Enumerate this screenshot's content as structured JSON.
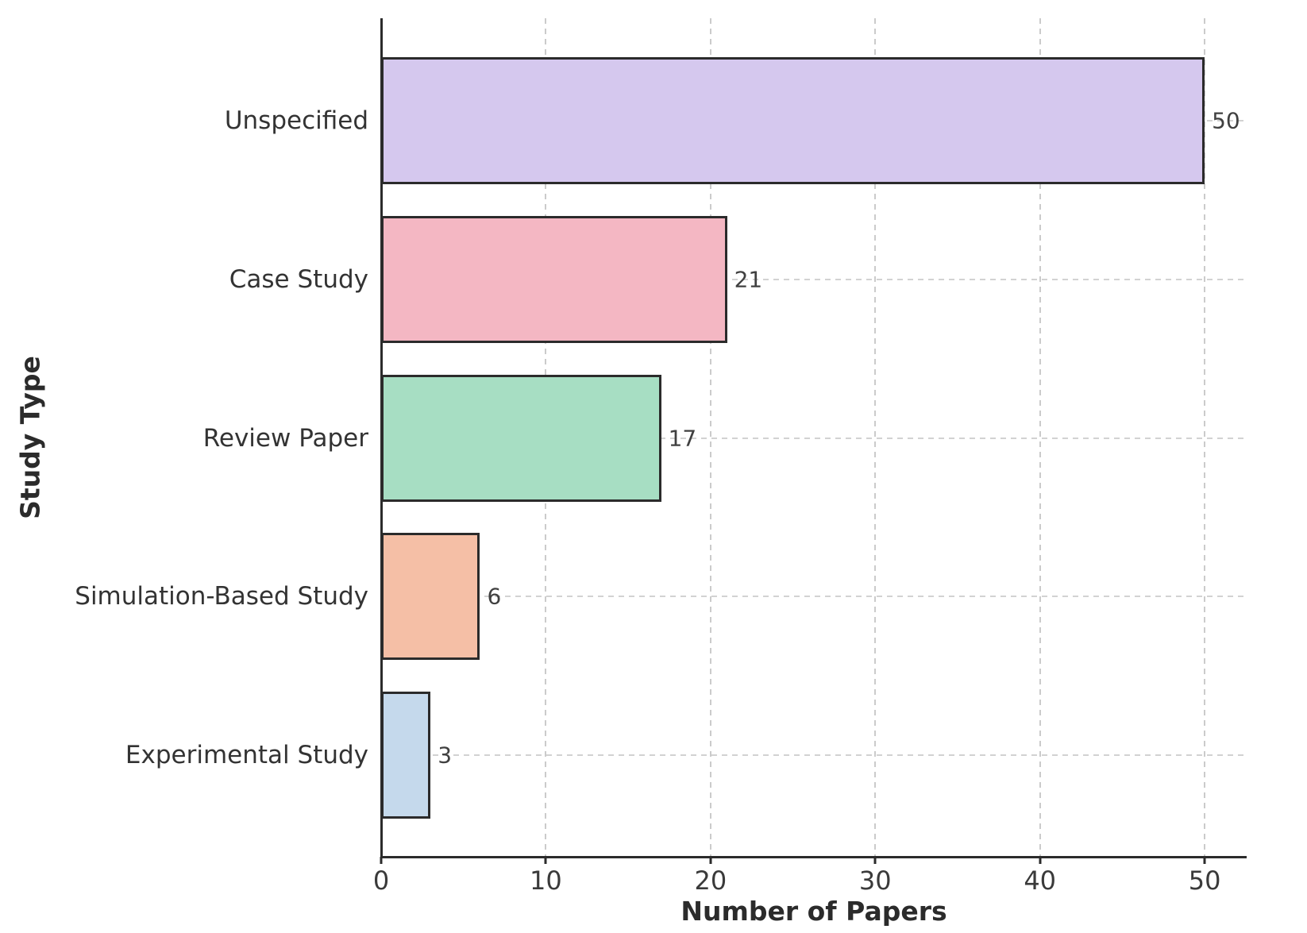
{
  "figure": {
    "background_color": "#ffffff",
    "text_color": "#333333"
  },
  "chart_data": {
    "type": "bar",
    "orientation": "horizontal",
    "title": "",
    "xlabel": "Number of Papers",
    "ylabel": "Study Type",
    "categories": [
      "Unspecified",
      "Case Study",
      "Review Paper",
      "Simulation-Based Study",
      "Experimental Study"
    ],
    "values": [
      50,
      21,
      17,
      6,
      3
    ],
    "value_labels": [
      "50",
      "21",
      "17",
      "6",
      "3"
    ],
    "bar_colors": [
      "#d5c8ee",
      "#f4b7c3",
      "#a7dec3",
      "#f5bfa6",
      "#c5d9ec"
    ],
    "bar_edge_color": "#2b2b2b",
    "xticks": [
      "0",
      "10",
      "20",
      "30",
      "40",
      "50"
    ],
    "xtick_values": [
      0,
      10,
      20,
      30,
      40,
      50
    ],
    "xlim": [
      0,
      52.55
    ],
    "grid": "dashed, both axes",
    "grid_color": "#cbcbcb",
    "legend_position": "none"
  }
}
